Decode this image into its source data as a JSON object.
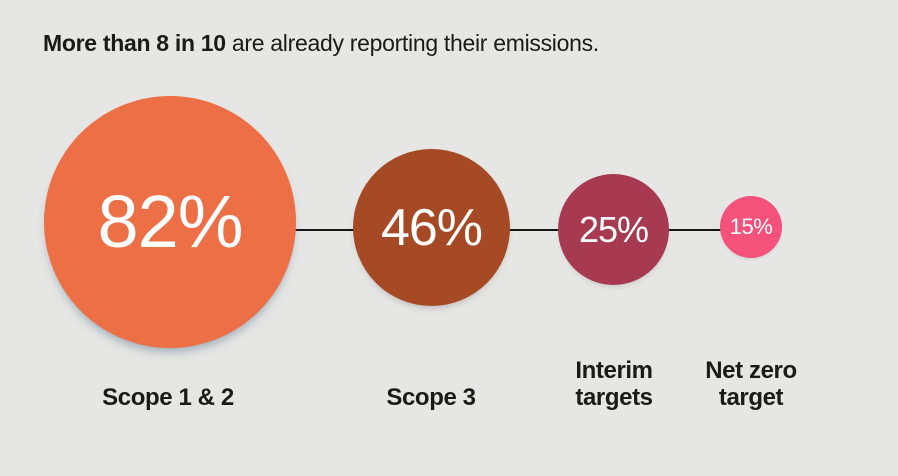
{
  "title": {
    "highlight": "More than 8 in 10",
    "rest": " are already reporting their emissions."
  },
  "chart_data": {
    "type": "bubble",
    "title": "More than 8 in 10 are already reporting their emissions.",
    "categories": [
      "Scope 1 & 2",
      "Scope 3",
      "Interim targets",
      "Net zero target"
    ],
    "display_categories": [
      "Scope 1 & 2",
      "Scope 3",
      "Interim\ntargets",
      "Net zero\ntarget"
    ],
    "values": [
      82,
      46,
      25,
      15
    ],
    "value_labels": [
      "82%",
      "46%",
      "25%",
      "15%"
    ],
    "colors": [
      "#ED6F45",
      "#A64A25",
      "#A73A51",
      "#F4517B"
    ],
    "background_color": "#E6E6E4",
    "text_color": "#1A1A1A",
    "connector_color": "#151515",
    "value_text_color": "#FFFFFF",
    "layout": "horizontal row of value-sized circles joined by a thin connector line, category labels below each circle, legend off, no axes"
  }
}
